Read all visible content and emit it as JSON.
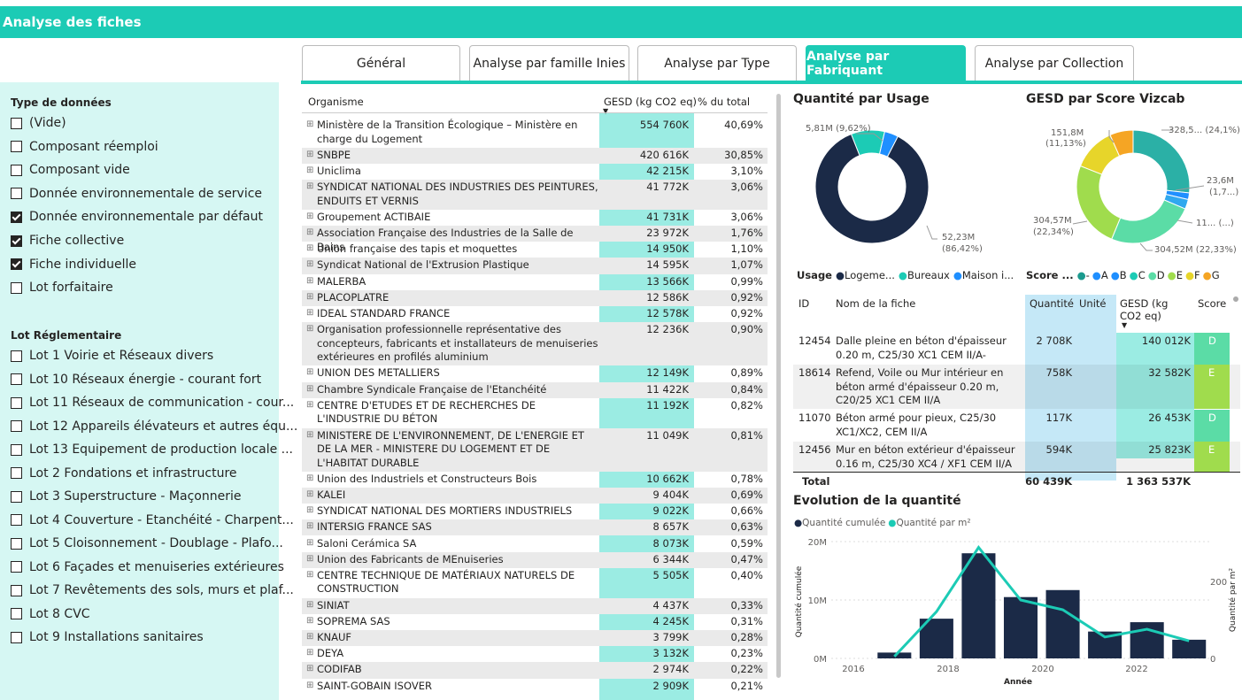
{
  "title": "Analyse des fiches",
  "tabs": [
    "Général",
    "Analyse par famille Inies",
    "Analyse par Type",
    "Analyse par Fabriquant",
    "Analyse par Collection"
  ],
  "filters": {
    "type_title": "Type de données",
    "type_items": [
      {
        "label": "(Vide)",
        "checked": false
      },
      {
        "label": "Composant réemploi",
        "checked": false
      },
      {
        "label": "Composant vide",
        "checked": false
      },
      {
        "label": "Donnée environnementale de service",
        "checked": false
      },
      {
        "label": "Donnée environnementale par défaut",
        "checked": true
      },
      {
        "label": "Fiche collective",
        "checked": true
      },
      {
        "label": "Fiche individuelle",
        "checked": true
      },
      {
        "label": "Lot forfaitaire",
        "checked": false
      }
    ],
    "lot_title": "Lot Réglementaire",
    "lot_items": [
      "Lot 1 Voirie et Réseaux divers",
      "Lot 10 Réseaux énergie - courant fort",
      "Lot 11 Réseaux de communication - cour...",
      "Lot 12 Appareils élévateurs et autres équ...",
      "Lot 13 Equipement de production locale ...",
      "Lot 2 Fondations et infrastructure",
      "Lot 3 Superstructure - Maçonnerie",
      "Lot 4 Couverture - Etanchéité - Charpent...",
      "Lot 5 Cloisonnement - Doublage - Plafo...",
      "Lot 6 Façades et menuiseries extérieures",
      "Lot 7 Revêtements des sols, murs et plaf...",
      "Lot 8 CVC",
      "Lot 9 Installations sanitaires"
    ]
  },
  "org_table": {
    "headers": {
      "org": "Organisme",
      "gesd": "GESD (kg CO2 eq)",
      "pct": "% du total"
    },
    "rows": [
      {
        "name": "Ministère de la Transition Écologique – Ministère en charge du Logement",
        "gesd": "554 760K",
        "pct": "40,69%"
      },
      {
        "name": "SNBPE",
        "gesd": "420 616K",
        "pct": "30,85%"
      },
      {
        "name": "Uniclima",
        "gesd": "42 215K",
        "pct": "3,10%"
      },
      {
        "name": "SYNDICAT NATIONAL DES INDUSTRIES DES PEINTURES, ENDUITS ET VERNIS",
        "gesd": "41 772K",
        "pct": "3,06%"
      },
      {
        "name": "Groupement ACTIBAIE",
        "gesd": "41 731K",
        "pct": "3,06%"
      },
      {
        "name": "Association Française des Industries de la Salle de Bains",
        "gesd": "23 972K",
        "pct": "1,76%"
      },
      {
        "name": "Union française des tapis et moquettes",
        "gesd": "14 950K",
        "pct": "1,10%"
      },
      {
        "name": "Syndicat National de l'Extrusion Plastique",
        "gesd": "14 595K",
        "pct": "1,07%"
      },
      {
        "name": "MALERBA",
        "gesd": "13 566K",
        "pct": "0,99%"
      },
      {
        "name": "PLACOPLATRE",
        "gesd": "12 586K",
        "pct": "0,92%"
      },
      {
        "name": "IDEAL STANDARD FRANCE",
        "gesd": "12 578K",
        "pct": "0,92%"
      },
      {
        "name": "Organisation professionnelle représentative des concepteurs, fabricants et installateurs de menuiseries extérieures en profilés aluminium",
        "gesd": "12 236K",
        "pct": "0,90%"
      },
      {
        "name": "UNION DES METALLIERS",
        "gesd": "12 149K",
        "pct": "0,89%"
      },
      {
        "name": "Chambre Syndicale Française de l'Etanchéité",
        "gesd": "11 422K",
        "pct": "0,84%"
      },
      {
        "name": "CENTRE D'ETUDES ET DE RECHERCHES DE L'INDUSTRIE DU BÉTON",
        "gesd": "11 192K",
        "pct": "0,82%"
      },
      {
        "name": "MINISTERE DE L'ENVIRONNEMENT, DE L'ENERGIE ET DE LA MER - MINISTERE DU LOGEMENT ET DE L'HABITAT DURABLE",
        "gesd": "11 049K",
        "pct": "0,81%"
      },
      {
        "name": "Union des Industriels et Constructeurs Bois",
        "gesd": "10 662K",
        "pct": "0,78%"
      },
      {
        "name": "KALEI",
        "gesd": "9 404K",
        "pct": "0,69%"
      },
      {
        "name": "SYNDICAT NATIONAL DES MORTIERS INDUSTRIELS",
        "gesd": "9 022K",
        "pct": "0,66%"
      },
      {
        "name": "INTERSIG FRANCE SAS",
        "gesd": "8 657K",
        "pct": "0,63%"
      },
      {
        "name": "Saloni Cerámica SA",
        "gesd": "8 073K",
        "pct": "0,59%"
      },
      {
        "name": "Union des Fabricants de MEnuiseries",
        "gesd": "6 344K",
        "pct": "0,47%"
      },
      {
        "name": "CENTRE TECHNIQUE DE MATÉRIAUX NATURELS DE CONSTRUCTION",
        "gesd": "5 505K",
        "pct": "0,40%"
      },
      {
        "name": "SINIAT",
        "gesd": "4 437K",
        "pct": "0,33%"
      },
      {
        "name": "SOPREMA SAS",
        "gesd": "4 245K",
        "pct": "0,31%"
      },
      {
        "name": "KNAUF",
        "gesd": "3 799K",
        "pct": "0,28%"
      },
      {
        "name": "DEYA",
        "gesd": "3 132K",
        "pct": "0,23%"
      },
      {
        "name": "CODIFAB",
        "gesd": "2 974K",
        "pct": "0,22%"
      },
      {
        "name": "SAINT-GOBAIN ISOVER",
        "gesd": "2 909K",
        "pct": "0,21%"
      }
    ]
  },
  "usage_chart": {
    "title": "Quantité par Usage",
    "legend_title": "Usage",
    "legend": [
      "Logeme...",
      "Bureaux",
      "Maison i..."
    ],
    "labels": [
      "5,81M (9,62%)",
      "52,23M",
      "(86,42%)"
    ]
  },
  "score_chart": {
    "title": "GESD par Score Vizcab",
    "legend_title": "Score ...",
    "legend": [
      "-",
      "A",
      "B",
      "C",
      "D",
      "E",
      "F",
      "G"
    ],
    "labels": [
      "151,8M",
      "(11,13%)",
      "328,5... (24,1%)",
      "23,6M",
      "(1,7...)",
      "304,57M",
      "(22,34%)",
      "11... (...)",
      "304,52M (22,33%)"
    ]
  },
  "fiche_table": {
    "headers": {
      "id": "ID",
      "name": "Nom de la fiche",
      "qty": "Quantité",
      "unit": "Unité",
      "gesd": "GESD (kg CO2 eq)",
      "score": "Score"
    },
    "rows": [
      {
        "id": "12454",
        "name": "Dalle pleine en béton d'épaisseur 0.20 m, C25/30 XC1 CEM II/A-",
        "qty": "2 708K",
        "unit": "",
        "gesd": "140 012K",
        "score": "D"
      },
      {
        "id": "18614",
        "name": "Refend, Voile ou Mur intérieur en béton armé d'épaisseur 0.20 m, C20/25 XC1 CEM II/A",
        "qty": "758K",
        "unit": "",
        "gesd": "32 582K",
        "score": "E"
      },
      {
        "id": "11070",
        "name": "Béton armé pour pieux, C25/30 XC1/XC2, CEM II/A",
        "qty": "117K",
        "unit": "",
        "gesd": "26 453K",
        "score": "D"
      },
      {
        "id": "12456",
        "name": "Mur en béton extérieur d'épaisseur 0.16 m, C25/30 XC4 / XF1 CEM II/A",
        "qty": "594K",
        "unit": "",
        "gesd": "25 823K",
        "score": "E"
      }
    ],
    "total": {
      "label": "Total",
      "qty": "60 439K",
      "gesd": "1 363 537K"
    }
  },
  "evolution_chart": {
    "title": "Evolution de la quantité",
    "legend": [
      "Quantité cumulée",
      "Quantité par m²"
    ],
    "xlabel": "Année",
    "ylabel_left": "Quantité cumulée",
    "ylabel_right": "Quantité par m²",
    "left_ticks": [
      "20M",
      "10M",
      "0M"
    ],
    "right_ticks": [
      "200",
      "0"
    ],
    "x_ticks": [
      "2016",
      "2018",
      "2020",
      "2022"
    ]
  },
  "chart_data": [
    {
      "type": "pie",
      "title": "Quantité par Usage",
      "categories": [
        "Logeme...",
        "Bureaux",
        "Maison i..."
      ],
      "values": [
        86.42,
        9.62,
        3.96
      ],
      "colors": [
        "#1b2a47",
        "#1ccbb5",
        "#1f8fff"
      ]
    },
    {
      "type": "pie",
      "title": "GESD par Score Vizcab",
      "categories": [
        "A",
        "B",
        "C",
        "D",
        "E",
        "F",
        "G"
      ],
      "values": [
        24.1,
        1.7,
        2.5,
        22.33,
        22.34,
        11.13,
        6.0
      ],
      "colors": [
        "#2bb0a6",
        "#1f8fff",
        "#30a8ee",
        "#5bdca6",
        "#a0dc4d",
        "#e7d52a",
        "#f5a524"
      ]
    },
    {
      "type": "bar",
      "title": "Evolution de la quantité",
      "x": [
        2015,
        2016,
        2017,
        2018,
        2019,
        2020,
        2021,
        2022,
        2023
      ],
      "series": [
        {
          "name": "Quantité cumulée",
          "values": [
            0,
            1.0,
            6.8,
            18.0,
            10.5,
            11.7,
            4.6,
            6.2,
            3.2
          ]
        },
        {
          "name": "Quantité par m²",
          "values": [
            0,
            5,
            120,
            285,
            150,
            125,
            55,
            75,
            45
          ]
        }
      ],
      "ylim": [
        0,
        20
      ],
      "y2lim": [
        0,
        300
      ]
    }
  ]
}
